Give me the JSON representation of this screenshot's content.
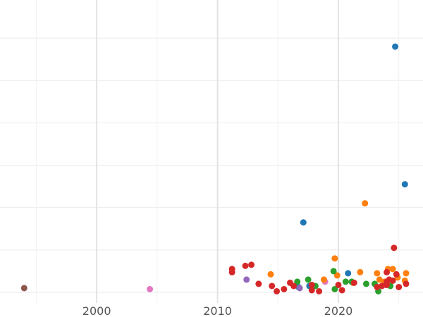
{
  "chart_data": {
    "type": "scatter",
    "title": "",
    "xlabel": "",
    "ylabel": "",
    "grid": true,
    "xlim": [
      1992.0,
      2027.0
    ],
    "ylim": [
      -0.5,
      13.8
    ],
    "x_ticks": [
      2000,
      2010,
      2020
    ],
    "x_tick_labels": [
      "2000",
      "2010",
      "2020"
    ],
    "y_gridlines": [
      0,
      2,
      4,
      6,
      8,
      10,
      12,
      14
    ],
    "colors": {
      "blue": "#1f77b4",
      "orange": "#ff7f0e",
      "green": "#2ca02c",
      "red": "#d62728",
      "purple": "#9467bd",
      "brown": "#8c564b",
      "pink": "#e377c2"
    },
    "series": [
      {
        "color": "#8c564b",
        "points": [
          [
            1994.0,
            0.2
          ]
        ]
      },
      {
        "color": "#e377c2",
        "points": [
          [
            2004.4,
            0.15
          ],
          [
            2018.9,
            0.5
          ],
          [
            2023.9,
            0.35
          ]
        ]
      },
      {
        "color": "#1f77b4",
        "points": [
          [
            2024.7,
            11.6
          ],
          [
            2025.5,
            5.1
          ],
          [
            2017.1,
            3.3
          ],
          [
            2020.8,
            0.9
          ],
          [
            2016.7,
            0.25
          ],
          [
            2017.6,
            0.3
          ]
        ]
      },
      {
        "color": "#ff7f0e",
        "points": [
          [
            2022.2,
            4.2
          ],
          [
            2019.7,
            1.6
          ],
          [
            2024.1,
            1.1
          ],
          [
            2024.5,
            1.1
          ],
          [
            2014.4,
            0.85
          ],
          [
            2019.9,
            0.8
          ],
          [
            2021.8,
            0.95
          ],
          [
            2023.2,
            0.9
          ],
          [
            2025.6,
            0.9
          ],
          [
            2018.8,
            0.6
          ],
          [
            2023.4,
            0.6
          ],
          [
            2023.8,
            0.5
          ],
          [
            2024.9,
            0.7
          ],
          [
            2025.5,
            0.55
          ],
          [
            2021.2,
            0.45
          ]
        ]
      },
      {
        "color": "#2ca02c",
        "points": [
          [
            2019.6,
            1.0
          ],
          [
            2017.5,
            0.6
          ],
          [
            2016.6,
            0.5
          ],
          [
            2018.1,
            0.3
          ],
          [
            2019.7,
            0.15
          ],
          [
            2020.6,
            0.5
          ],
          [
            2022.3,
            0.4
          ],
          [
            2023.3,
            0.05
          ],
          [
            2023.0,
            0.4
          ],
          [
            2024.3,
            0.3
          ],
          [
            2021.1,
            0.5
          ]
        ]
      },
      {
        "color": "#9467bd",
        "points": [
          [
            2012.4,
            0.6
          ],
          [
            2016.8,
            0.2
          ]
        ]
      },
      {
        "color": "#d62728",
        "points": [
          [
            2011.2,
            1.1
          ],
          [
            2011.2,
            0.95
          ],
          [
            2012.3,
            1.25
          ],
          [
            2012.8,
            1.3
          ],
          [
            2024.6,
            2.1
          ],
          [
            2013.4,
            0.4
          ],
          [
            2014.5,
            0.3
          ],
          [
            2014.9,
            0.05
          ],
          [
            2015.5,
            0.15
          ],
          [
            2016.0,
            0.45
          ],
          [
            2016.3,
            0.3
          ],
          [
            2017.8,
            0.35
          ],
          [
            2017.8,
            0.1
          ],
          [
            2018.4,
            0.05
          ],
          [
            2020.0,
            0.35
          ],
          [
            2020.3,
            0.1
          ],
          [
            2021.3,
            0.45
          ],
          [
            2023.2,
            0.25
          ],
          [
            2023.6,
            0.3
          ],
          [
            2024.0,
            0.35
          ],
          [
            2024.0,
            0.5
          ],
          [
            2024.5,
            0.55
          ],
          [
            2024.8,
            0.85
          ],
          [
            2024.0,
            0.95
          ],
          [
            2025.0,
            0.25
          ],
          [
            2025.6,
            0.4
          ],
          [
            2024.2,
            0.6
          ]
        ]
      }
    ]
  }
}
